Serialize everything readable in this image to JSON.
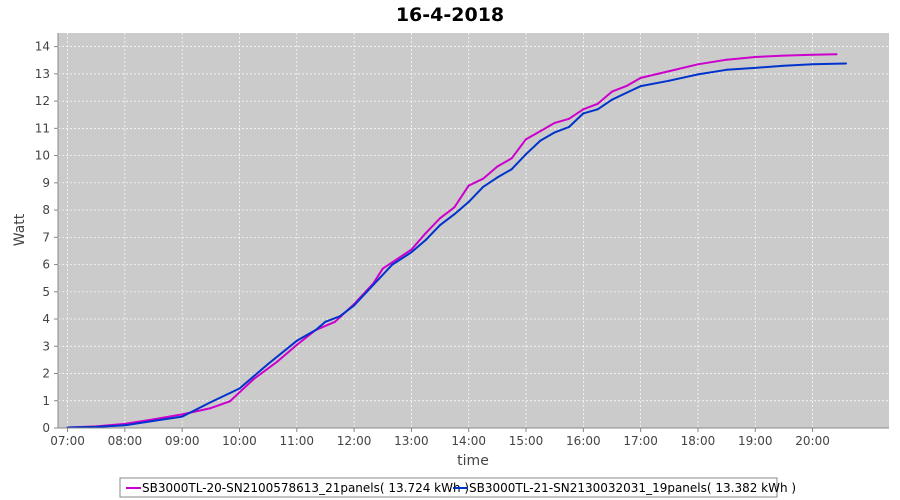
{
  "chart_data": {
    "type": "line",
    "title": "16-4-2018",
    "xlabel": "time",
    "ylabel": "Watt",
    "xlim": [
      "06:50",
      "21:20"
    ],
    "ylim": [
      0,
      14.5
    ],
    "x_tick_labels": [
      "07:00",
      "08:00",
      "09:00",
      "10:00",
      "11:00",
      "12:00",
      "13:00",
      "14:00",
      "15:00",
      "16:00",
      "17:00",
      "18:00",
      "19:00",
      "20:00"
    ],
    "y_tick_labels": [
      0,
      1,
      2,
      3,
      4,
      5,
      6,
      7,
      8,
      9,
      10,
      11,
      12,
      13,
      14
    ],
    "grid": true,
    "legend_position": "bottom",
    "colors": {
      "plot_background": "#cbcbcb",
      "grid": "#ffffff",
      "series_1": "#cc00cc",
      "series_2": "#0033cc"
    },
    "series": [
      {
        "name": "SB3000TL-20-SN2100578613_21panels( 13.724 kWh )",
        "color": "#cc00cc",
        "x": [
          "07:00",
          "07:30",
          "08:00",
          "08:30",
          "09:00",
          "09:30",
          "09:50",
          "10:15",
          "10:40",
          "11:00",
          "11:20",
          "11:40",
          "12:00",
          "12:20",
          "12:30",
          "12:45",
          "13:00",
          "13:15",
          "13:30",
          "13:45",
          "14:00",
          "14:15",
          "14:30",
          "14:45",
          "15:00",
          "15:15",
          "15:30",
          "15:45",
          "16:00",
          "16:15",
          "16:30",
          "16:45",
          "17:00",
          "17:30",
          "18:00",
          "18:30",
          "19:00",
          "19:30",
          "20:00",
          "20:25"
        ],
        "y": [
          0.02,
          0.06,
          0.15,
          0.32,
          0.5,
          0.73,
          0.98,
          1.8,
          2.45,
          3.05,
          3.6,
          3.9,
          4.55,
          5.3,
          5.85,
          6.2,
          6.55,
          7.15,
          7.7,
          8.1,
          8.9,
          9.15,
          9.6,
          9.9,
          10.6,
          10.9,
          11.2,
          11.35,
          11.7,
          11.9,
          12.35,
          12.55,
          12.85,
          13.1,
          13.35,
          13.52,
          13.62,
          13.67,
          13.7,
          13.72
        ]
      },
      {
        "name": "SB3000TL-21-SN2130032031_19panels( 13.382 kWh )",
        "color": "#0033cc",
        "x": [
          "07:00",
          "07:30",
          "08:00",
          "08:30",
          "09:00",
          "09:30",
          "10:00",
          "10:30",
          "11:00",
          "11:20",
          "11:30",
          "11:45",
          "12:00",
          "12:20",
          "12:40",
          "13:00",
          "13:15",
          "13:30",
          "13:45",
          "14:00",
          "14:15",
          "14:30",
          "14:45",
          "15:00",
          "15:15",
          "15:30",
          "15:45",
          "16:00",
          "16:15",
          "16:30",
          "16:45",
          "17:00",
          "17:30",
          "18:00",
          "18:30",
          "19:00",
          "19:30",
          "20:00",
          "20:35"
        ],
        "y": [
          0.02,
          0.04,
          0.1,
          0.26,
          0.42,
          0.95,
          1.45,
          2.35,
          3.2,
          3.6,
          3.9,
          4.1,
          4.5,
          5.25,
          6.0,
          6.45,
          6.9,
          7.45,
          7.85,
          8.3,
          8.85,
          9.2,
          9.5,
          10.05,
          10.55,
          10.85,
          11.05,
          11.55,
          11.7,
          12.05,
          12.3,
          12.55,
          12.75,
          12.98,
          13.15,
          13.22,
          13.3,
          13.35,
          13.38
        ]
      }
    ]
  }
}
